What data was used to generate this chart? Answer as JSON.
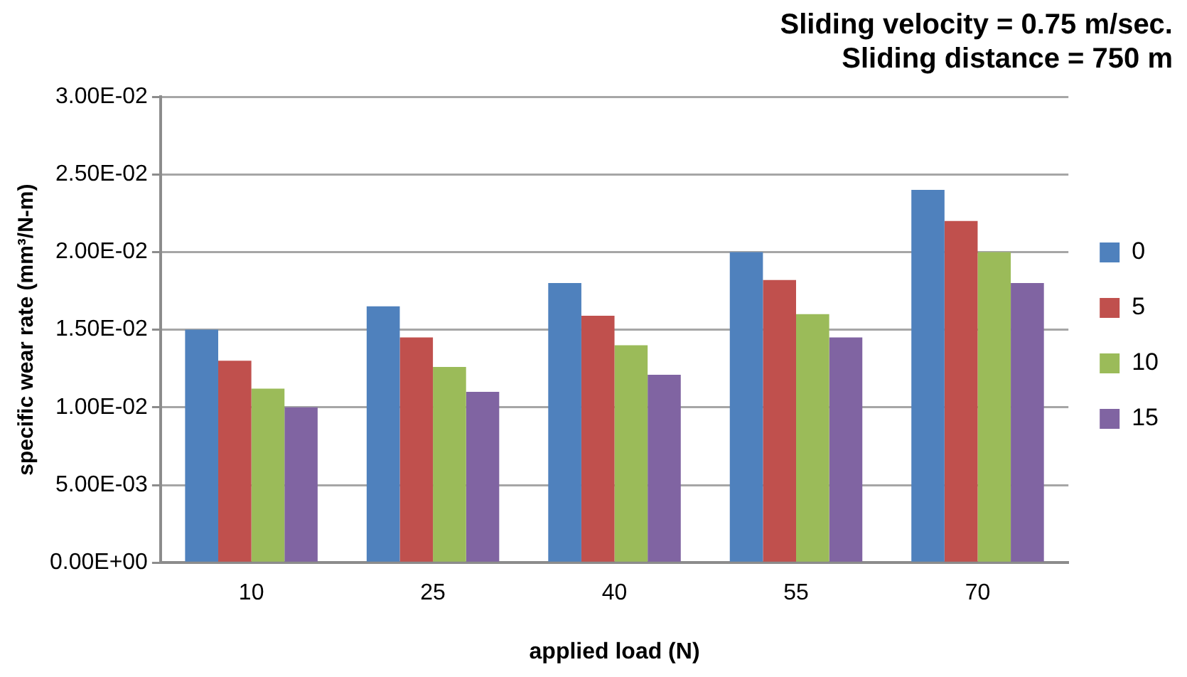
{
  "chart_data": {
    "type": "bar",
    "title": "Sliding velocity = 0.75 m/sec.\nSliding distance = 750 m",
    "xlabel": "applied load (N)",
    "ylabel": "specific wear rate (mm³/N-m)",
    "categories": [
      "10",
      "25",
      "40",
      "55",
      "70"
    ],
    "series": [
      {
        "name": "0",
        "color": "#4f81bd",
        "values": [
          0.015,
          0.0165,
          0.018,
          0.02,
          0.024
        ]
      },
      {
        "name": "5",
        "color": "#c0504d",
        "values": [
          0.013,
          0.0145,
          0.0159,
          0.0182,
          0.022
        ]
      },
      {
        "name": "10",
        "color": "#9bbb59",
        "values": [
          0.0112,
          0.0126,
          0.014,
          0.016,
          0.02
        ]
      },
      {
        "name": "15",
        "color": "#8064a2",
        "values": [
          0.01,
          0.011,
          0.0121,
          0.0145,
          0.018
        ]
      }
    ],
    "ylim": [
      0,
      0.03
    ],
    "yticks": [
      {
        "value": 0,
        "label": "0.00E+00"
      },
      {
        "value": 0.005,
        "label": "5.00E-03"
      },
      {
        "value": 0.01,
        "label": "1.00E-02"
      },
      {
        "value": 0.015,
        "label": "1.50E-02"
      },
      {
        "value": 0.02,
        "label": "2.00E-02"
      },
      {
        "value": 0.025,
        "label": "2.50E-02"
      },
      {
        "value": 0.03,
        "label": "3.00E-02"
      }
    ],
    "grid": "y",
    "legend": "right"
  }
}
